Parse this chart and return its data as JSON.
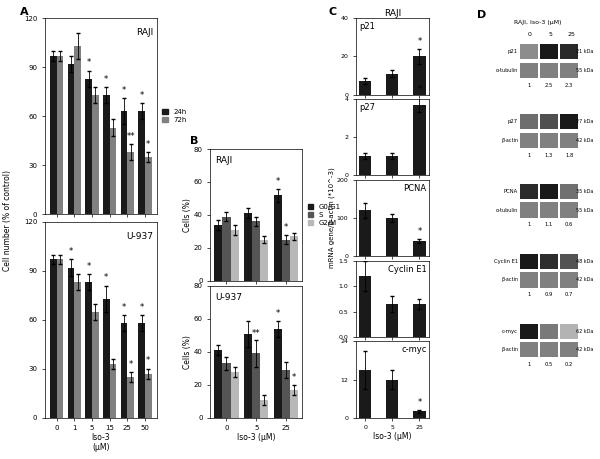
{
  "panelA": {
    "title_raji": "RAJI",
    "title_u937": "U-937",
    "xlabel": "Iso-3\n(μM)",
    "ylabel": "Cell number (% of control)",
    "x_labels": [
      "0",
      "1",
      "5",
      "15",
      "25",
      "50"
    ],
    "raji_24h": [
      97,
      92,
      83,
      73,
      63,
      63
    ],
    "raji_72h": [
      97,
      103,
      73,
      53,
      38,
      35
    ],
    "raji_24h_err": [
      3,
      5,
      5,
      5,
      8,
      5
    ],
    "raji_72h_err": [
      3,
      8,
      5,
      5,
      5,
      3
    ],
    "u937_24h": [
      97,
      92,
      83,
      73,
      58,
      58
    ],
    "u937_72h": [
      97,
      83,
      65,
      33,
      25,
      27
    ],
    "u937_24h_err": [
      3,
      5,
      5,
      8,
      5,
      5
    ],
    "u937_72h_err": [
      3,
      5,
      5,
      3,
      3,
      3
    ],
    "raji_sig_24h": [
      false,
      false,
      true,
      true,
      true,
      true
    ],
    "raji_sig_72h": [
      false,
      false,
      false,
      false,
      true,
      true
    ],
    "u937_sig_24h": [
      false,
      true,
      true,
      true,
      true,
      true
    ],
    "u937_sig_72h": [
      false,
      false,
      false,
      false,
      true,
      true
    ],
    "raji_dbl_sig_72h": [
      false,
      false,
      false,
      false,
      true,
      false
    ],
    "ylim": [
      0,
      120
    ],
    "yticks": [
      0,
      30,
      60,
      90,
      120
    ],
    "color_24h": "#1a1a1a",
    "color_72h": "#808080"
  },
  "panelB": {
    "title_raji": "RAJI",
    "title_u937": "U-937",
    "xlabel": "Iso-3 (μM)",
    "ylabel": "Cells (%)",
    "x_labels": [
      "0",
      "5",
      "25"
    ],
    "raji_g0g1": [
      34,
      41,
      52
    ],
    "raji_s": [
      39,
      36,
      25
    ],
    "raji_g2m": [
      31,
      25,
      27
    ],
    "raji_g0g1_err": [
      3,
      3,
      4
    ],
    "raji_s_err": [
      3,
      3,
      3
    ],
    "raji_g2m_err": [
      3,
      2,
      2
    ],
    "u937_g0g1": [
      41,
      51,
      54
    ],
    "u937_s": [
      33,
      39,
      29
    ],
    "u937_g2m": [
      28,
      11,
      17
    ],
    "u937_g0g1_err": [
      3,
      8,
      5
    ],
    "u937_s_err": [
      4,
      8,
      5
    ],
    "u937_g2m_err": [
      3,
      3,
      3
    ],
    "raji_sig_g0g1": [
      false,
      false,
      true
    ],
    "raji_sig_s": [
      false,
      false,
      true
    ],
    "u937_sig_g0g1": [
      false,
      false,
      true
    ],
    "u937_dbl_sig_s_idx": 1,
    "u937_sig_g2m": [
      false,
      false,
      true
    ],
    "ylim": [
      0,
      80
    ],
    "yticks": [
      0,
      20,
      40,
      60,
      80
    ],
    "color_g0g1": "#1a1a1a",
    "color_s": "#555555",
    "color_g2m": "#b8b8b8"
  },
  "panelC": {
    "title": "RAJI",
    "xlabel": "Iso-3 (μM)",
    "ylabel": "mRNA gene/β-actin (*10^-3)",
    "x_labels": [
      "0",
      "5",
      "25"
    ],
    "p21": [
      7,
      11,
      20
    ],
    "p21_err": [
      1.5,
      2,
      4
    ],
    "p27": [
      1.0,
      1.0,
      3.7
    ],
    "p27_err": [
      0.15,
      0.15,
      0.4
    ],
    "pcna": [
      120,
      100,
      40
    ],
    "pcna_err": [
      20,
      10,
      5
    ],
    "cyclinE1": [
      1.2,
      0.65,
      0.65
    ],
    "cyclinE1_err": [
      0.3,
      0.15,
      0.1
    ],
    "cmyc": [
      15,
      12,
      2
    ],
    "cmyc_err": [
      6,
      3,
      0.5
    ],
    "p21_ylim": [
      0,
      40
    ],
    "p21_yticks": [
      0,
      20,
      40
    ],
    "p27_ylim": [
      0,
      4
    ],
    "p27_yticks": [
      0,
      2,
      4
    ],
    "pcna_ylim": [
      0,
      200
    ],
    "pcna_yticks": [
      0,
      100,
      200
    ],
    "cyclinE1_ylim": [
      0,
      1.5
    ],
    "cyclinE1_yticks": [
      0,
      0.5,
      1.0,
      1.5
    ],
    "cmyc_ylim": [
      0,
      24
    ],
    "cmyc_yticks": [
      0,
      12,
      24
    ],
    "color_bar": "#1a1a1a",
    "p21_sig": [
      false,
      false,
      true
    ],
    "p27_sig": [
      false,
      false,
      true
    ],
    "pcna_sig": [
      false,
      false,
      true
    ],
    "cmyc_sig": [
      false,
      false,
      true
    ]
  },
  "panelD": {
    "title": "RAJI, Iso-3 (μM)",
    "doses": [
      "0",
      "5",
      "25"
    ],
    "proteins": [
      {
        "name": "p21",
        "loading": "α-tubulin",
        "kda_protein": "21 kDa",
        "kda_loading": "55 kDa",
        "ratios": [
          "1",
          "2.5",
          "2.3"
        ],
        "p_dark": 0.15,
        "l_dark": 0.55
      },
      {
        "name": "p27",
        "loading": "β-actin",
        "kda_protein": "27 kDa",
        "kda_loading": "42 kDa",
        "ratios": [
          "1",
          "1.3",
          "1.8"
        ],
        "p_dark": 0.45,
        "l_dark": 0.55
      },
      {
        "name": "PCNA",
        "loading": "α-tubulin",
        "kda_protein": "35 kDa",
        "kda_loading": "55 kDa",
        "ratios": [
          "1",
          "1.1",
          "0.6"
        ],
        "p_dark": 0.35,
        "l_dark": 0.55
      },
      {
        "name": "Cyclin E1",
        "loading": "β-actin",
        "kda_protein": "48 kDa",
        "kda_loading": "42 kDa",
        "ratios": [
          "1",
          "0.9",
          "0.7"
        ],
        "p_dark": 0.45,
        "l_dark": 0.55
      },
      {
        "name": "c-myc",
        "loading": "β-actin",
        "kda_protein": "62 kDa",
        "kda_loading": "42 kDa",
        "ratios": [
          "1",
          "0.5",
          "0.2"
        ],
        "p_dark": 0.35,
        "l_dark": 0.55
      }
    ]
  },
  "background_color": "#ffffff",
  "fontsize_label": 5.5,
  "fontsize_tick": 5.0,
  "fontsize_title": 6.5,
  "fontsize_panel": 8,
  "fontsize_sig": 6
}
